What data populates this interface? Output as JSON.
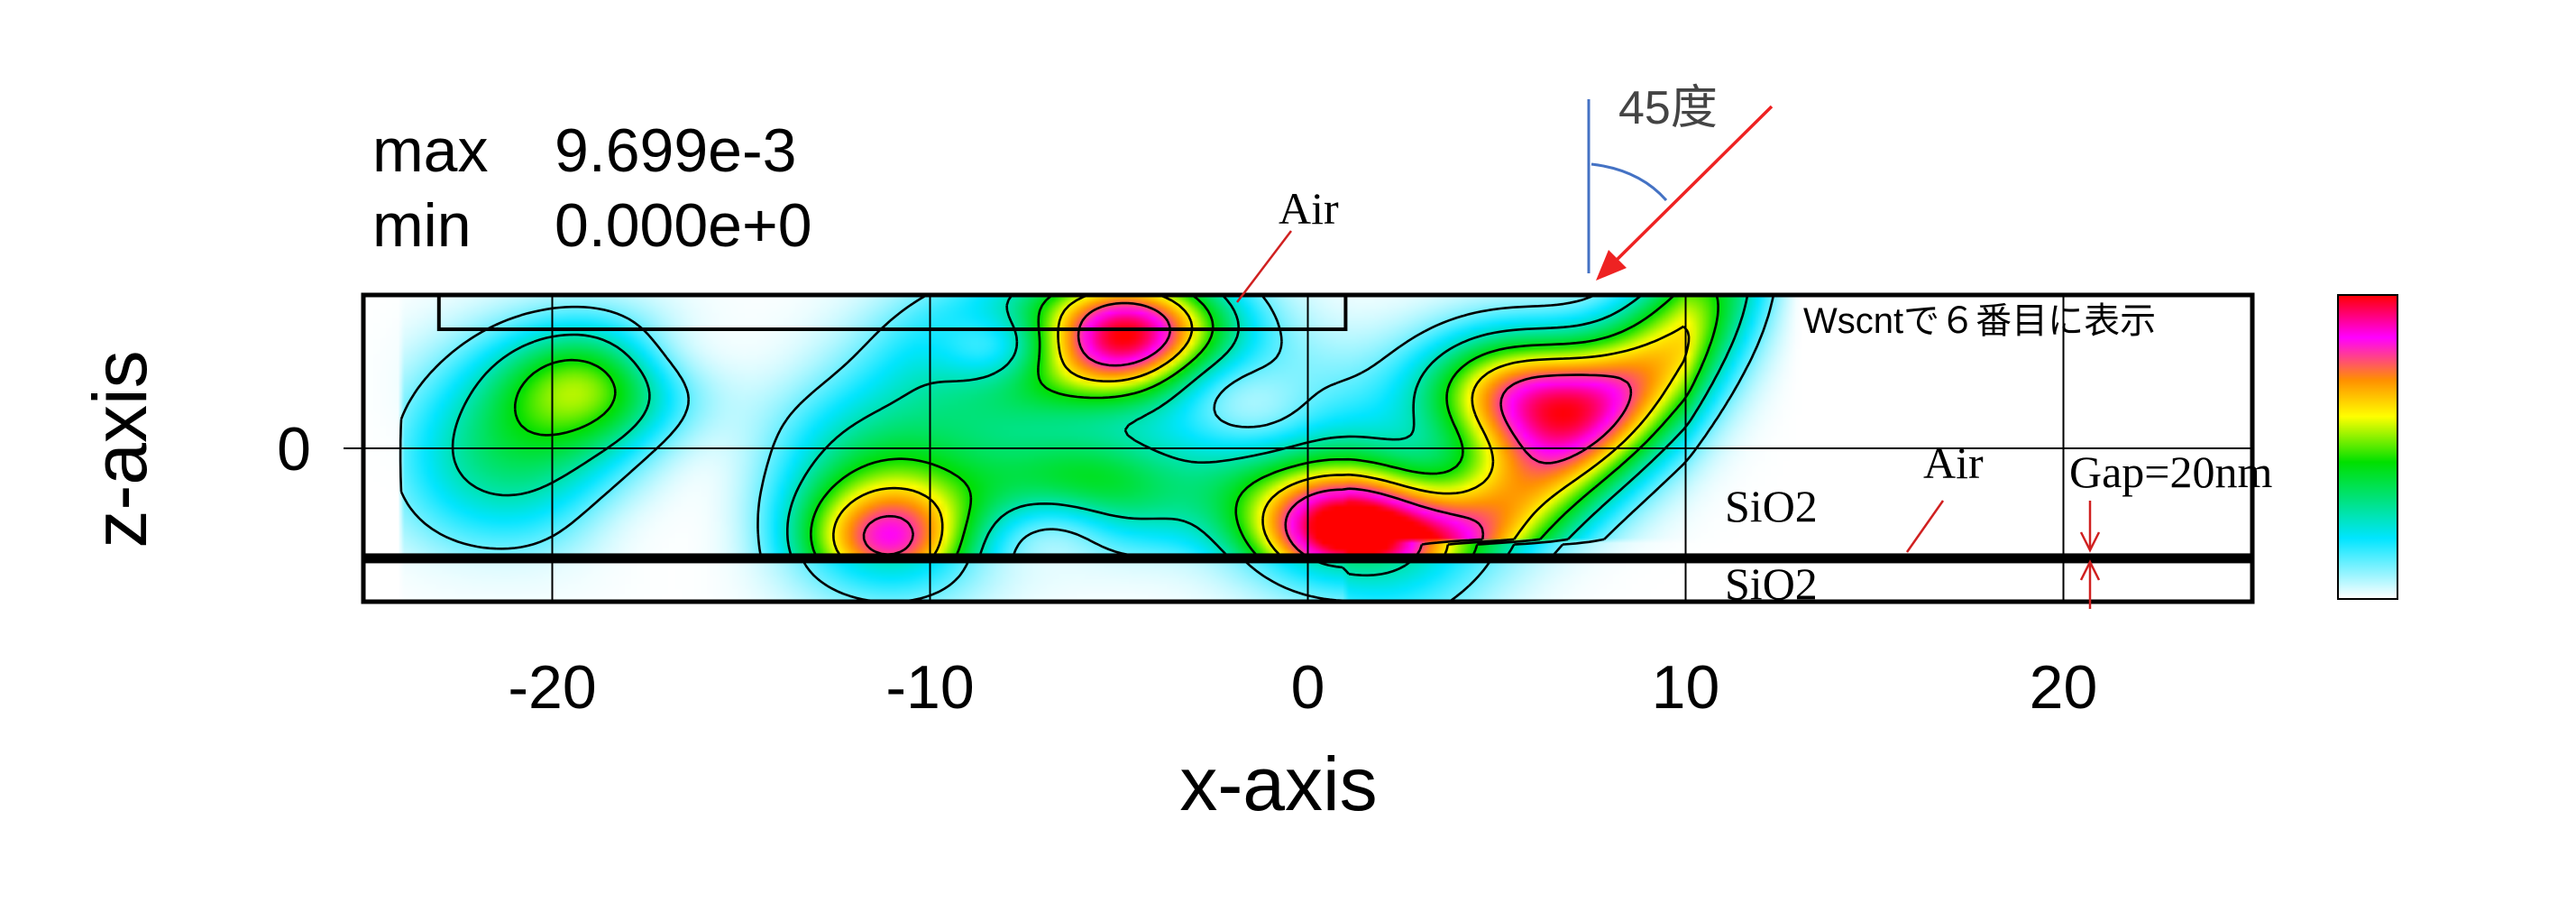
{
  "chart_data": {
    "type": "heatmap",
    "xlabel": "x-axis",
    "ylabel": "z-axis",
    "x_ticks": [
      "-20",
      "-10",
      "0",
      "10",
      "20"
    ],
    "x_tick_values": [
      -20,
      -10,
      0,
      10,
      20
    ],
    "y_ticks": [
      "0"
    ],
    "y_tick_values": [
      0
    ],
    "xlim": [
      -25,
      25
    ],
    "ylim": [
      -4.2,
      4.2
    ],
    "stats": {
      "max_label": "max",
      "max_value": "9.699e-3",
      "min_label": "min",
      "min_value": "0.000e+0"
    },
    "max_value_numeric": 0.009699,
    "min_value_numeric": 0.0,
    "colorbar": [
      "#ffffff",
      "#00e5ff",
      "#00e000",
      "#ffff00",
      "#ff9000",
      "#ff00ff",
      "#ff0000"
    ],
    "grid": true,
    "hotspots": [
      {
        "x": 1.2,
        "z": -2.3,
        "level": 1.0
      },
      {
        "x": -4.7,
        "z": 3.1,
        "level": 0.95
      },
      {
        "x": -11.0,
        "z": -2.6,
        "level": 0.72
      },
      {
        "x": -19.0,
        "z": 1.8,
        "level": 0.45
      },
      {
        "x": -8.0,
        "z": 2.6,
        "level": 0.55
      },
      {
        "x": -6.0,
        "z": -1.2,
        "level": 0.5
      },
      {
        "x": 5.5,
        "z": 1.5,
        "level": 0.7
      }
    ],
    "structure": {
      "air_box_x": [
        -23,
        1
      ],
      "substrate_top_z": -3.0,
      "gap_nm": "Gap=20nm",
      "incidence_angle_deg": 45
    },
    "annotations": {
      "air_top": "Air",
      "air_right": "Air",
      "sio2_upper": "SiO2",
      "sio2_lower": "SiO2",
      "gap": "Gap=20nm",
      "angle": "45度",
      "note": "Wscntで６番目に表示"
    }
  }
}
